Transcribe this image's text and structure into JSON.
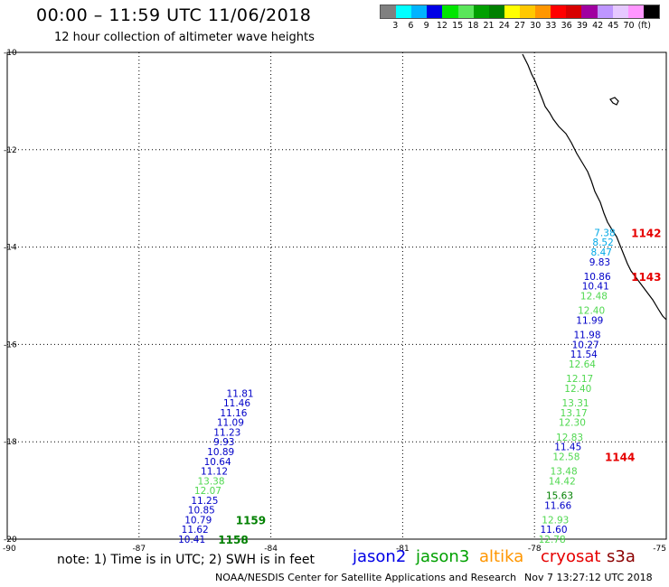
{
  "header": {
    "title": "00:00 – 11:59 UTC 11/06/2018",
    "subtitle": "12 hour collection of altimeter wave heights"
  },
  "legend": {
    "colors": [
      "#808080",
      "#00ffff",
      "#00b4ff",
      "#0000e6",
      "#00e600",
      "#5ae65a",
      "#00a000",
      "#008000",
      "#ffff00",
      "#ffc800",
      "#ff9600",
      "#ff0000",
      "#d70000",
      "#a000a0",
      "#be96ff",
      "#e6c8ff",
      "#ff96ff",
      "#000000"
    ],
    "labels": [
      "3",
      "6",
      "9",
      "12",
      "15",
      "18",
      "21",
      "24",
      "27",
      "30",
      "33",
      "36",
      "39",
      "42",
      "45",
      "70",
      "(ft)"
    ]
  },
  "map": {
    "lon_range": [
      -90,
      -75
    ],
    "lat_range": [
      -20,
      -10
    ],
    "lat_labels": [
      "-10",
      "-12",
      "-14",
      "-16",
      "-18",
      "-20"
    ],
    "lon_labels": [
      "-90",
      "-87",
      "-84",
      "-81",
      "-78",
      "-75"
    ],
    "gridline_color": "#000000",
    "coast_color": "#000000",
    "track_west": [
      {
        "lat": -17.0,
        "swh": "11.81",
        "sat": "jason2"
      },
      {
        "lat": -17.2,
        "swh": "11.46",
        "sat": "jason2"
      },
      {
        "lat": -17.4,
        "swh": "11.16",
        "sat": "jason2"
      },
      {
        "lat": -17.6,
        "swh": "11.09",
        "sat": "jason2"
      },
      {
        "lat": -17.8,
        "swh": "11.23",
        "sat": "jason2"
      },
      {
        "lat": -18.0,
        "swh": "9.93",
        "sat": "jason2"
      },
      {
        "lat": -18.2,
        "swh": "10.89",
        "sat": "jason2"
      },
      {
        "lat": -18.4,
        "swh": "10.64",
        "sat": "jason2"
      },
      {
        "lat": -18.6,
        "swh": "11.12",
        "sat": "jason2"
      },
      {
        "lat": -18.8,
        "swh": "13.38",
        "sat": "jason3"
      },
      {
        "lat": -19.0,
        "swh": "12.07",
        "sat": "jason3"
      },
      {
        "lat": -19.2,
        "swh": "11.25",
        "sat": "jason2"
      },
      {
        "lat": -19.4,
        "swh": "10.85",
        "sat": "jason2"
      },
      {
        "lat": -19.6,
        "swh": "10.79",
        "sat": "jason2"
      },
      {
        "lat": -19.8,
        "swh": "11.62",
        "sat": "jason2"
      },
      {
        "lat": -20.0,
        "swh": "10.41",
        "sat": "jason2"
      }
    ],
    "track_east": [
      {
        "lat": -13.7,
        "swh": "7.38",
        "sat": "jason2_light"
      },
      {
        "lat": -13.9,
        "swh": "8.52",
        "sat": "jason2_light"
      },
      {
        "lat": -14.1,
        "swh": "8.47",
        "sat": "jason2_light"
      },
      {
        "lat": -14.3,
        "swh": "9.83",
        "sat": "jason2"
      },
      {
        "lat": -14.6,
        "swh": "10.86",
        "sat": "jason2"
      },
      {
        "lat": -14.8,
        "swh": "10.41",
        "sat": "jason2"
      },
      {
        "lat": -15.0,
        "swh": "12.48",
        "sat": "jason3"
      },
      {
        "lat": -15.3,
        "swh": "12.40",
        "sat": "jason3"
      },
      {
        "lat": -15.5,
        "swh": "11.99",
        "sat": "jason2"
      },
      {
        "lat": -15.8,
        "swh": "11.98",
        "sat": "jason2"
      },
      {
        "lat": -16.0,
        "swh": "10.27",
        "sat": "jason2"
      },
      {
        "lat": -16.2,
        "swh": "11.54",
        "sat": "jason2"
      },
      {
        "lat": -16.4,
        "swh": "12.64",
        "sat": "jason3"
      },
      {
        "lat": -16.7,
        "swh": "12.17",
        "sat": "jason3"
      },
      {
        "lat": -16.9,
        "swh": "12.40",
        "sat": "jason3"
      },
      {
        "lat": -17.2,
        "swh": "13.31",
        "sat": "jason3"
      },
      {
        "lat": -17.4,
        "swh": "13.17",
        "sat": "jason3"
      },
      {
        "lat": -17.6,
        "swh": "12.30",
        "sat": "jason3"
      },
      {
        "lat": -17.9,
        "swh": "12.83",
        "sat": "jason3"
      },
      {
        "lat": -18.1,
        "swh": "11.45",
        "sat": "jason2"
      },
      {
        "lat": -18.3,
        "swh": "12.58",
        "sat": "jason3"
      },
      {
        "lat": -18.6,
        "swh": "13.48",
        "sat": "jason3"
      },
      {
        "lat": -18.8,
        "swh": "14.42",
        "sat": "jason3"
      },
      {
        "lat": -19.1,
        "swh": "15.63",
        "sat": "jason3_dark"
      },
      {
        "lat": -19.3,
        "swh": "11.66",
        "sat": "jason2"
      },
      {
        "lat": -19.6,
        "swh": "12.93",
        "sat": "jason3"
      },
      {
        "lat": -19.8,
        "swh": "11.60",
        "sat": "jason2"
      },
      {
        "lat": -20.0,
        "swh": "12.78",
        "sat": "jason3"
      }
    ],
    "times": [
      {
        "label": "1142",
        "lon": -75.8,
        "lat": -13.7,
        "color": "#e60000"
      },
      {
        "label": "1143",
        "lon": -75.8,
        "lat": -14.6,
        "color": "#e60000"
      },
      {
        "label": "1144",
        "lon": -76.4,
        "lat": -18.3,
        "color": "#e60000"
      },
      {
        "label": "1159",
        "lon": -84.8,
        "lat": -19.6,
        "color": "#008000"
      },
      {
        "label": "1158",
        "lon": -85.2,
        "lat": -20.0,
        "color": "#008000"
      }
    ],
    "track_colors": {
      "jason2": "#0000c8",
      "jason2_light": "#00a8e6",
      "jason3": "#50d850",
      "jason3_dark": "#008000"
    }
  },
  "note": "note: 1) Time is in UTC; 2) SWH is in feet",
  "satellites": [
    {
      "name": "jason2",
      "color": "#0000e6"
    },
    {
      "name": "jason3",
      "color": "#00a000"
    },
    {
      "name": "altika",
      "color": "#ff9600"
    },
    {
      "name": "cryosat",
      "color": "#e60000"
    },
    {
      "name": "s3a",
      "color": "#8b0000"
    }
  ],
  "footer": {
    "credit": "NOAA/NESDIS Center for Satellite Applications and Research",
    "stamp": "Nov  7 13:27:12 UTC 2018"
  }
}
